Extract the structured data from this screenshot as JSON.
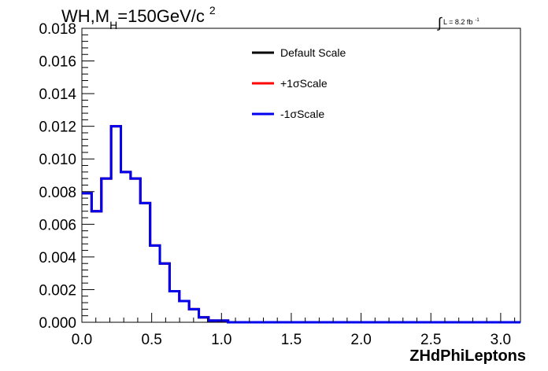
{
  "title": {
    "prefix": "WH,M",
    "subscript": "H",
    "suffix": "=150GeV/c",
    "superscript": "2"
  },
  "lumi": {
    "integral": "∫",
    "text": "L = 8.2 fb",
    "superscript": "-1"
  },
  "colors": {
    "frame": "#000000",
    "default_scale": "#000000",
    "plus_sigma": "#ff0000",
    "minus_sigma": "#0000ee"
  },
  "chart_data": {
    "type": "line",
    "xlabel": "ZHdPhiLeptons",
    "ylabel": "",
    "xlim": [
      0,
      3.1416
    ],
    "ylim": [
      0,
      0.018
    ],
    "x_ticks": [
      "0.0",
      "0.5",
      "1.0",
      "1.5",
      "2.0",
      "2.5",
      "3.0"
    ],
    "y_ticks": [
      "0.000",
      "0.002",
      "0.004",
      "0.006",
      "0.008",
      "0.010",
      "0.012",
      "0.014",
      "0.016",
      "0.018"
    ],
    "bin_edges": [
      0,
      0.0698,
      0.1396,
      0.2094,
      0.2793,
      0.3491,
      0.4189,
      0.4887,
      0.5585,
      0.6283,
      0.6981,
      0.7679,
      0.8378,
      0.9076,
      0.9774,
      1.0472,
      1.117,
      1.1868,
      1.2566,
      1.3265,
      1.3963,
      1.4661,
      1.5359,
      1.6057,
      1.6755,
      1.7453,
      1.8151,
      1.885,
      1.9548,
      2.0246,
      2.0944,
      2.1642,
      2.234,
      2.3038,
      2.3736,
      2.4435,
      2.5133,
      2.5831,
      2.6529,
      2.7227,
      2.7925,
      2.8623,
      2.9322,
      3.002,
      3.0718,
      3.1416
    ],
    "series": [
      {
        "name": "Default Scale",
        "color": "#000000",
        "values": [
          0.0079,
          0.0068,
          0.0088,
          0.012,
          0.0092,
          0.0088,
          0.0073,
          0.0047,
          0.0036,
          0.0019,
          0.0013,
          0.0008,
          0.0003,
          0.0001,
          0.0001,
          0.0,
          0.0,
          0.0,
          0.0,
          0.0,
          0.0,
          0.0,
          0.0,
          0.0,
          0.0,
          0.0,
          0.0,
          0.0,
          0.0,
          0.0,
          0.0,
          0.0,
          0.0,
          0.0,
          0.0,
          0.0,
          0.0,
          0.0,
          0.0,
          0.0,
          0.0,
          0.0,
          0.0,
          0.0,
          0.0
        ]
      },
      {
        "name": "+1σScale",
        "color": "#ff0000",
        "values": [
          0.0079,
          0.0068,
          0.0088,
          0.012,
          0.0092,
          0.0088,
          0.0073,
          0.0047,
          0.0036,
          0.0019,
          0.0013,
          0.0008,
          0.0003,
          0.0001,
          0.0001,
          0.0,
          0.0,
          0.0,
          0.0,
          0.0,
          0.0,
          0.0,
          0.0,
          0.0,
          0.0,
          0.0,
          0.0,
          0.0,
          0.0,
          0.0,
          0.0,
          0.0,
          0.0,
          0.0,
          0.0,
          0.0,
          0.0,
          0.0,
          0.0,
          0.0,
          0.0,
          0.0,
          0.0,
          0.0,
          0.0
        ]
      },
      {
        "name": "-1σScale",
        "color": "#0000ee",
        "values": [
          0.0079,
          0.0068,
          0.0088,
          0.012,
          0.0092,
          0.0088,
          0.0073,
          0.0047,
          0.0036,
          0.0019,
          0.0013,
          0.0008,
          0.0003,
          0.0001,
          0.0001,
          0.0,
          0.0,
          0.0,
          0.0,
          0.0,
          0.0,
          0.0,
          0.0,
          0.0,
          0.0,
          0.0,
          0.0,
          0.0,
          0.0,
          0.0,
          0.0,
          0.0,
          0.0,
          0.0,
          0.0,
          0.0,
          0.0,
          0.0,
          0.0,
          0.0,
          0.0,
          0.0,
          0.0,
          0.0,
          0.0
        ]
      }
    ],
    "legend_position": "top-center",
    "grid": false
  }
}
